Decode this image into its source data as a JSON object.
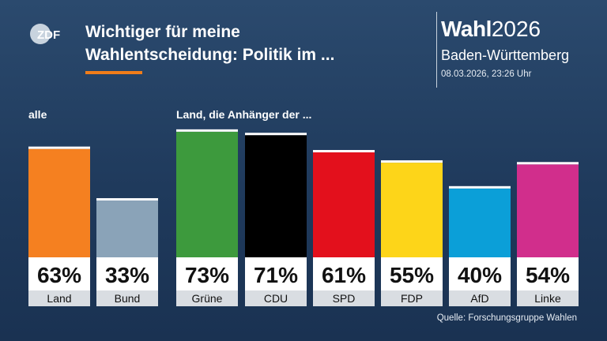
{
  "header": {
    "title_line1": "Wichtiger für meine",
    "title_line2": "Wahlentscheidung: Politik im ...",
    "brand_word": "Wahl",
    "brand_year": "2026",
    "region": "Baden-Württemberg",
    "timestamp": "08.03.2026, 23:26 Uhr",
    "logo_text": "ZDF"
  },
  "colors": {
    "accent": "#f07d1a",
    "background_top": "#2b4a6e",
    "background_bottom": "#1a3252"
  },
  "groups": {
    "left_label": "alle",
    "right_label": "Land, die Anhänger der ..."
  },
  "chart_data": {
    "type": "bar",
    "categories": [
      "Land",
      "Bund",
      "Grüne",
      "CDU",
      "SPD",
      "FDP",
      "AfD",
      "Linke"
    ],
    "values": [
      63,
      33,
      73,
      71,
      61,
      55,
      40,
      54
    ],
    "value_labels": [
      "63%",
      "33%",
      "73%",
      "71%",
      "61%",
      "55%",
      "40%",
      "54%"
    ],
    "colors": [
      "#f58020",
      "#8aa3b8",
      "#3d9a3d",
      "#000000",
      "#e3101c",
      "#fdd519",
      "#0b9fd8",
      "#d12e8c"
    ],
    "ylim": [
      0,
      100
    ],
    "grid": false,
    "title": "",
    "xlabel": "",
    "ylabel": ""
  },
  "footer": {
    "source": "Quelle: Forschungsgruppe Wahlen"
  }
}
